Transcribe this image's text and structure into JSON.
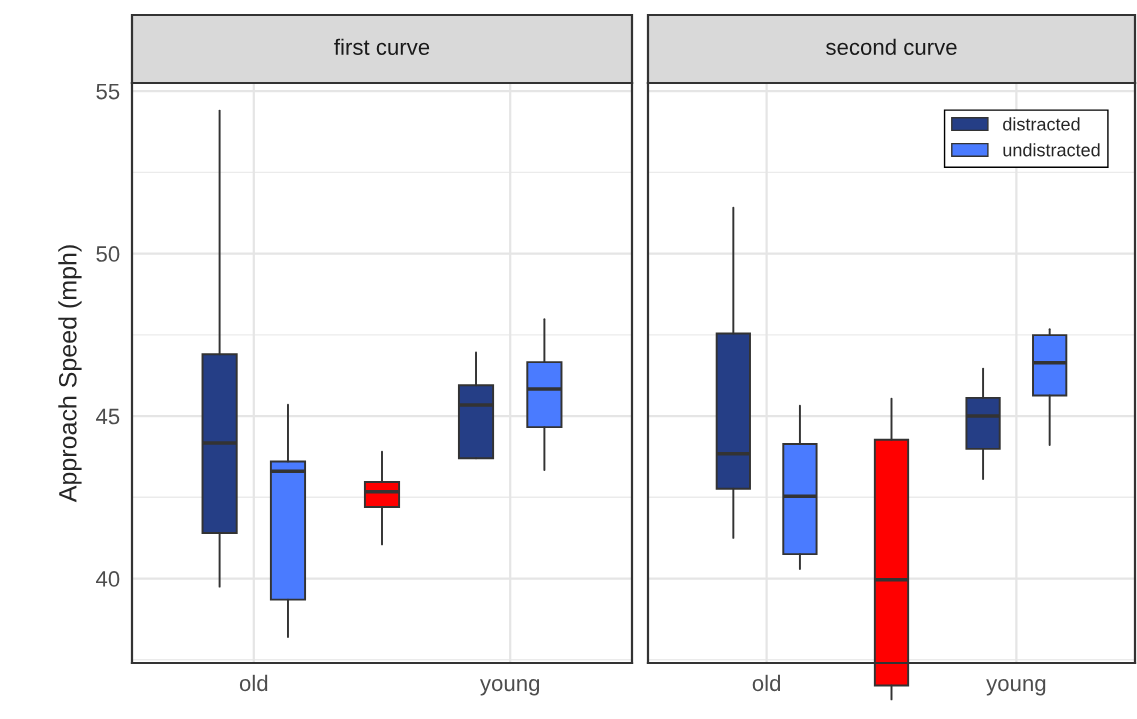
{
  "chart_data": [
    {
      "type": "box",
      "title": "first curve",
      "ylabel": "Approach Speed (mph)",
      "categories": [
        "old",
        null,
        "young"
      ],
      "ylim": [
        37.4,
        55.25
      ],
      "yticks": [
        40,
        45,
        50,
        55
      ],
      "grid": true,
      "legend": false,
      "series": [
        {
          "color": "#253e86",
          "boxes": [
            {
              "low": 39.75,
              "q1": 41.4,
              "median": 44.17,
              "q3": 46.9,
              "high": 54.4
            },
            null,
            {
              "low": 43.7,
              "q1": 43.7,
              "median": 45.34,
              "q3": 45.95,
              "high": 46.96
            }
          ]
        },
        {
          "color": "#ff0000",
          "boxes": [
            null,
            {
              "low": 41.05,
              "q1": 42.2,
              "median": 42.67,
              "q3": 42.97,
              "high": 43.9
            },
            null
          ]
        },
        {
          "color": "#4a7bff",
          "boxes": [
            {
              "low": 38.2,
              "q1": 39.35,
              "median": 43.3,
              "q3": 43.6,
              "high": 45.35
            },
            null,
            {
              "low": 43.34,
              "q1": 44.66,
              "median": 45.83,
              "q3": 46.66,
              "high": 47.98
            }
          ]
        }
      ]
    },
    {
      "type": "box",
      "title": "second curve",
      "categories": [
        "old",
        null,
        "young"
      ],
      "ylim": [
        37.4,
        55.25
      ],
      "yticks": [
        40,
        45,
        50,
        55
      ],
      "grid": true,
      "legend": "top right",
      "tick_labels": "x",
      "series": [
        {
          "name": "distracted",
          "color": "#253e86",
          "boxes": [
            {
              "low": 41.25,
              "q1": 42.76,
              "median": 43.84,
              "q3": 47.54,
              "high": 51.41
            },
            null,
            {
              "low": 43.06,
              "q1": 43.99,
              "median": 45.0,
              "q3": 45.56,
              "high": 46.46
            }
          ]
        },
        {
          "color": "#ff0000",
          "boxes": [
            null,
            {
              "low": 36.28,
              "q1": 36.71,
              "median": 39.96,
              "q3": 44.27,
              "high": 45.53
            },
            null
          ]
        },
        {
          "name": "undistracted",
          "color": "#4a7bff",
          "boxes": [
            {
              "low": 40.29,
              "q1": 40.75,
              "median": 42.53,
              "q3": 44.14,
              "high": 45.32
            },
            null,
            {
              "low": 44.11,
              "q1": 45.63,
              "median": 46.64,
              "q3": 47.49,
              "high": 47.67
            }
          ]
        }
      ]
    }
  ]
}
